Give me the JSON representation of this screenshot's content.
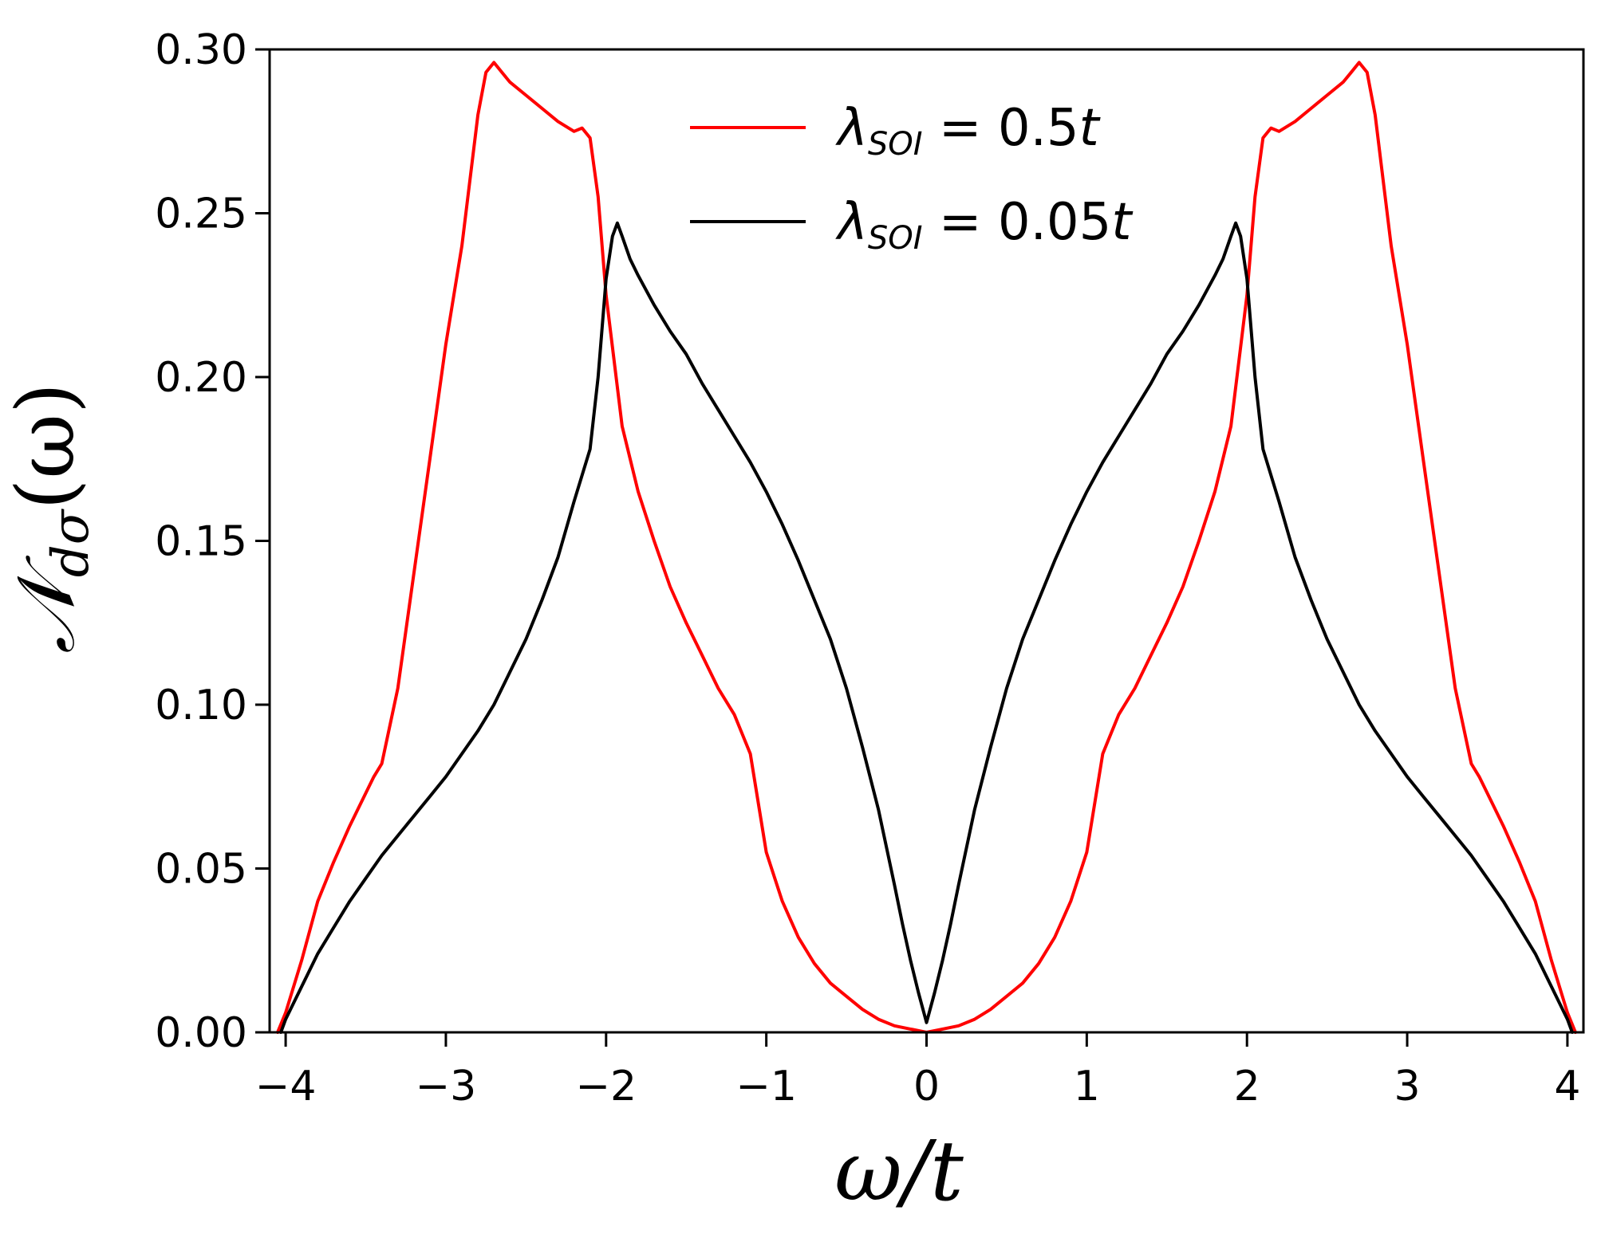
{
  "chart_data": {
    "type": "line",
    "xlabel": "ω/t",
    "ylabel": {
      "main": "𝒩",
      "sub": "dσ",
      "arg": "(ω)"
    },
    "xlim": [
      -4.1,
      4.1
    ],
    "ylim": [
      0.0,
      0.3
    ],
    "xticks": [
      -4,
      -3,
      -2,
      -1,
      0,
      1,
      2,
      3,
      4
    ],
    "xtick_labels": [
      "−4",
      "−3",
      "−2",
      "−1",
      "0",
      "1",
      "2",
      "3",
      "4"
    ],
    "yticks": [
      0.0,
      0.05,
      0.1,
      0.15,
      0.2,
      0.25,
      0.3
    ],
    "ytick_labels": [
      "0.00",
      "0.05",
      "0.10",
      "0.15",
      "0.20",
      "0.25",
      "0.30"
    ],
    "grid": false,
    "legend_position": "top-center",
    "series": [
      {
        "name": "λSOI = 0.5t",
        "legend": {
          "symbol": "λ",
          "sub": "SOI",
          "rest": " = 0.5",
          "t": "t"
        },
        "color": "#ff0000",
        "points": [
          [
            0.0,
            0.0
          ],
          [
            0.1,
            0.001
          ],
          [
            0.2,
            0.002
          ],
          [
            0.3,
            0.004
          ],
          [
            0.4,
            0.007
          ],
          [
            0.5,
            0.011
          ],
          [
            0.6,
            0.015
          ],
          [
            0.7,
            0.021
          ],
          [
            0.8,
            0.029
          ],
          [
            0.9,
            0.04
          ],
          [
            1.0,
            0.055
          ],
          [
            1.05,
            0.07
          ],
          [
            1.1,
            0.085
          ],
          [
            1.2,
            0.097
          ],
          [
            1.3,
            0.105
          ],
          [
            1.4,
            0.115
          ],
          [
            1.5,
            0.125
          ],
          [
            1.6,
            0.136
          ],
          [
            1.7,
            0.15
          ],
          [
            1.8,
            0.165
          ],
          [
            1.9,
            0.185
          ],
          [
            2.0,
            0.225
          ],
          [
            2.05,
            0.255
          ],
          [
            2.1,
            0.273
          ],
          [
            2.15,
            0.276
          ],
          [
            2.2,
            0.275
          ],
          [
            2.3,
            0.278
          ],
          [
            2.4,
            0.282
          ],
          [
            2.5,
            0.286
          ],
          [
            2.6,
            0.29
          ],
          [
            2.65,
            0.293
          ],
          [
            2.7,
            0.296
          ],
          [
            2.75,
            0.293
          ],
          [
            2.8,
            0.28
          ],
          [
            2.9,
            0.24
          ],
          [
            3.0,
            0.21
          ],
          [
            3.1,
            0.175
          ],
          [
            3.2,
            0.14
          ],
          [
            3.3,
            0.105
          ],
          [
            3.4,
            0.082
          ],
          [
            3.45,
            0.078
          ],
          [
            3.5,
            0.073
          ],
          [
            3.6,
            0.063
          ],
          [
            3.7,
            0.052
          ],
          [
            3.8,
            0.04
          ],
          [
            3.9,
            0.022
          ],
          [
            4.0,
            0.006
          ],
          [
            4.05,
            0.0
          ]
        ]
      },
      {
        "name": "λSOI = 0.05t",
        "legend": {
          "symbol": "λ",
          "sub": "SOI",
          "rest": " = 0.05",
          "t": "t"
        },
        "color": "#000000",
        "points": [
          [
            0.0,
            0.003
          ],
          [
            0.05,
            0.012
          ],
          [
            0.1,
            0.022
          ],
          [
            0.15,
            0.033
          ],
          [
            0.2,
            0.045
          ],
          [
            0.3,
            0.068
          ],
          [
            0.4,
            0.087
          ],
          [
            0.5,
            0.105
          ],
          [
            0.6,
            0.12
          ],
          [
            0.7,
            0.132
          ],
          [
            0.8,
            0.144
          ],
          [
            0.9,
            0.155
          ],
          [
            1.0,
            0.165
          ],
          [
            1.1,
            0.174
          ],
          [
            1.2,
            0.182
          ],
          [
            1.3,
            0.19
          ],
          [
            1.4,
            0.198
          ],
          [
            1.5,
            0.207
          ],
          [
            1.6,
            0.214
          ],
          [
            1.7,
            0.222
          ],
          [
            1.8,
            0.231
          ],
          [
            1.85,
            0.236
          ],
          [
            1.9,
            0.243
          ],
          [
            1.93,
            0.247
          ],
          [
            1.96,
            0.243
          ],
          [
            2.0,
            0.23
          ],
          [
            2.05,
            0.2
          ],
          [
            2.1,
            0.178
          ],
          [
            2.2,
            0.162
          ],
          [
            2.3,
            0.145
          ],
          [
            2.4,
            0.132
          ],
          [
            2.5,
            0.12
          ],
          [
            2.6,
            0.11
          ],
          [
            2.7,
            0.1
          ],
          [
            2.8,
            0.092
          ],
          [
            2.9,
            0.085
          ],
          [
            3.0,
            0.078
          ],
          [
            3.1,
            0.072
          ],
          [
            3.2,
            0.066
          ],
          [
            3.3,
            0.06
          ],
          [
            3.4,
            0.054
          ],
          [
            3.5,
            0.047
          ],
          [
            3.6,
            0.04
          ],
          [
            3.7,
            0.032
          ],
          [
            3.8,
            0.024
          ],
          [
            3.9,
            0.014
          ],
          [
            4.0,
            0.004
          ],
          [
            4.03,
            0.0
          ]
        ]
      }
    ]
  }
}
